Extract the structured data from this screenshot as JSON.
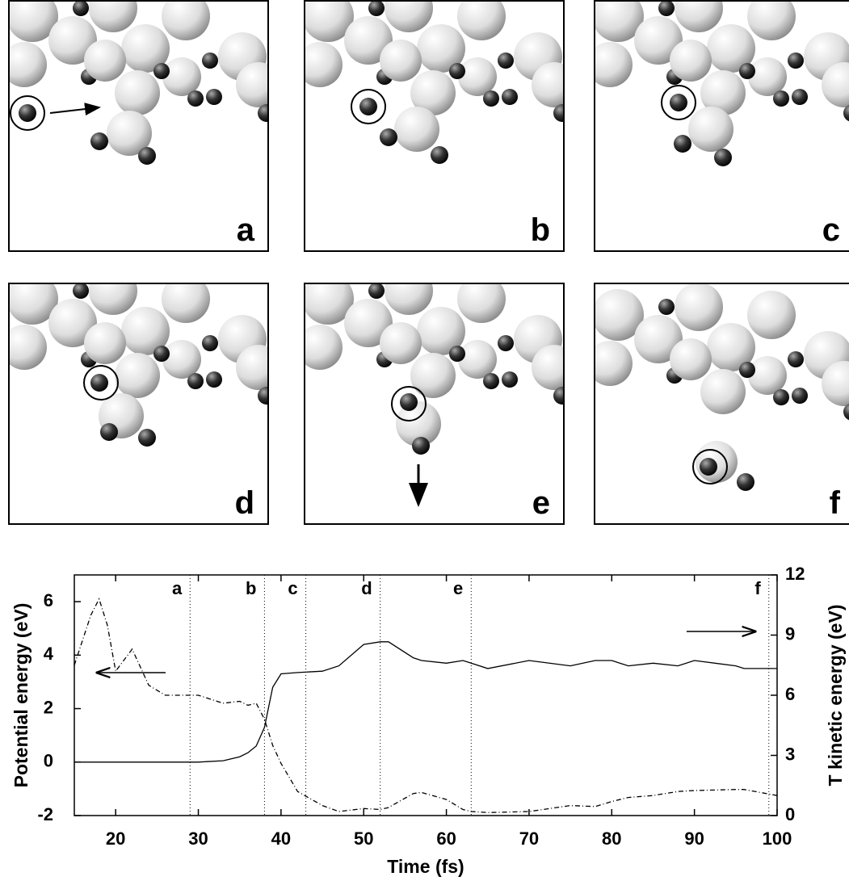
{
  "panels": [
    "a",
    "b",
    "c",
    "d",
    "e",
    "f"
  ],
  "chart_data": {
    "type": "line",
    "x_label": "Time (fs)",
    "y_label": "Potential energy (eV)",
    "y2_label": "T kinetic energy (eV)",
    "x": [
      15,
      17,
      18,
      19,
      20,
      22,
      24,
      26,
      30,
      33,
      35,
      36,
      37,
      38,
      39,
      40,
      42,
      45,
      47,
      50,
      52,
      53,
      56,
      57,
      60,
      62,
      63,
      65,
      70,
      75,
      78,
      80,
      82,
      85,
      88,
      90,
      95,
      96,
      100
    ],
    "series": [
      {
        "name": null,
        "color": "#000000",
        "dash": "solid",
        "values": [
          0,
          0,
          0,
          0,
          0,
          0,
          0,
          0,
          0,
          0.05,
          0.2,
          0.35,
          0.6,
          1.3,
          2.8,
          3.3,
          3.35,
          3.4,
          3.6,
          4.4,
          4.5,
          4.5,
          3.9,
          3.8,
          3.7,
          3.8,
          3.7,
          3.5,
          3.8,
          3.6,
          3.8,
          3.8,
          3.6,
          3.7,
          3.6,
          3.8,
          3.6,
          3.5,
          3.5
        ]
      },
      {
        "name": null,
        "color": "#000000",
        "dash": "dashdot",
        "axis": "y2",
        "values": [
          7.5,
          10.0,
          10.8,
          9.5,
          7.2,
          8.3,
          6.5,
          6.0,
          6.0,
          5.6,
          5.7,
          5.5,
          5.6,
          4.8,
          3.5,
          2.6,
          1.2,
          0.5,
          0.2,
          0.35,
          0.3,
          0.4,
          1.1,
          1.15,
          0.8,
          0.3,
          0.2,
          0.15,
          0.2,
          0.5,
          0.45,
          0.7,
          0.9,
          1.0,
          1.2,
          1.25,
          1.3,
          1.3,
          1.0
        ]
      }
    ],
    "xlim": [
      15,
      100
    ],
    "xticks": [
      20,
      30,
      40,
      50,
      60,
      70,
      80,
      90,
      100
    ],
    "ylim": [
      -2,
      7
    ],
    "yticks": [
      -2,
      0,
      2,
      4,
      6
    ],
    "y2lim": [
      0,
      12
    ],
    "y2ticks": [
      0,
      3,
      6,
      9,
      12
    ],
    "markers": [
      {
        "x": 29,
        "label": "a"
      },
      {
        "x": 38,
        "label": "b"
      },
      {
        "x": 43,
        "label": "c"
      },
      {
        "x": 52,
        "label": "d"
      },
      {
        "x": 63,
        "label": "e"
      },
      {
        "x": 99,
        "label": "f"
      }
    ]
  }
}
